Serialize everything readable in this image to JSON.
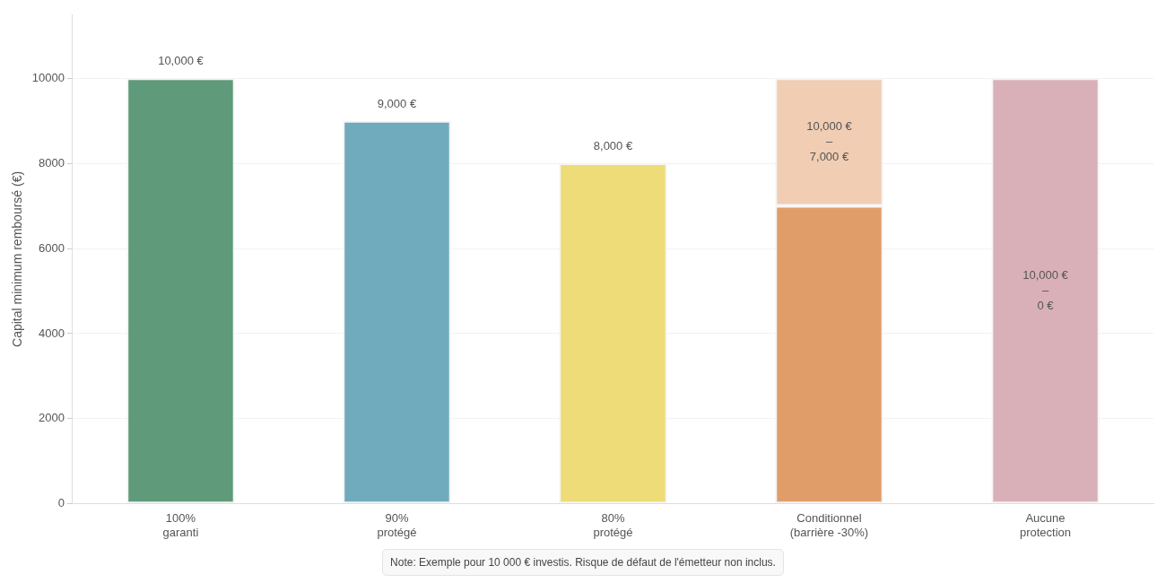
{
  "chart_data": {
    "type": "bar",
    "ylabel": "Capital minimum remboursé (€)",
    "categories": [
      "100%\ngaranti",
      "90%\nprotégé",
      "80%\nprotégé",
      "Conditionnel\n(barrière -30%)",
      "Aucune\nprotection"
    ],
    "series": [
      {
        "colors": [
          "#5f9a7a",
          "#70abbd",
          "#eddc78",
          "#e09d6a",
          "#d9b0b8"
        ],
        "values": [
          10000,
          9000,
          8000,
          7000,
          null
        ],
        "value_labels": [
          "10,000 €",
          "9,000 €",
          "8,000 €",
          null,
          null
        ]
      },
      {
        "colors": [
          "#5f9a7a",
          "#70abbd",
          "#eddc78",
          "#f0cdb3",
          "#d9b0b8"
        ],
        "values": [
          null,
          null,
          null,
          3000,
          10000
        ]
      }
    ],
    "stacked": true,
    "ylim": [
      0,
      11500
    ],
    "yticks": [
      0,
      2000,
      4000,
      6000,
      8000,
      10000
    ],
    "grid": "y",
    "legend": false,
    "annotations": [
      "10,000 €\n–\n7,000 €",
      "10,000 €\n–\n0 €",
      "Note: Exemple pour 10 000 € investis. Risque de défaut de l'émetteur non inclus."
    ]
  }
}
